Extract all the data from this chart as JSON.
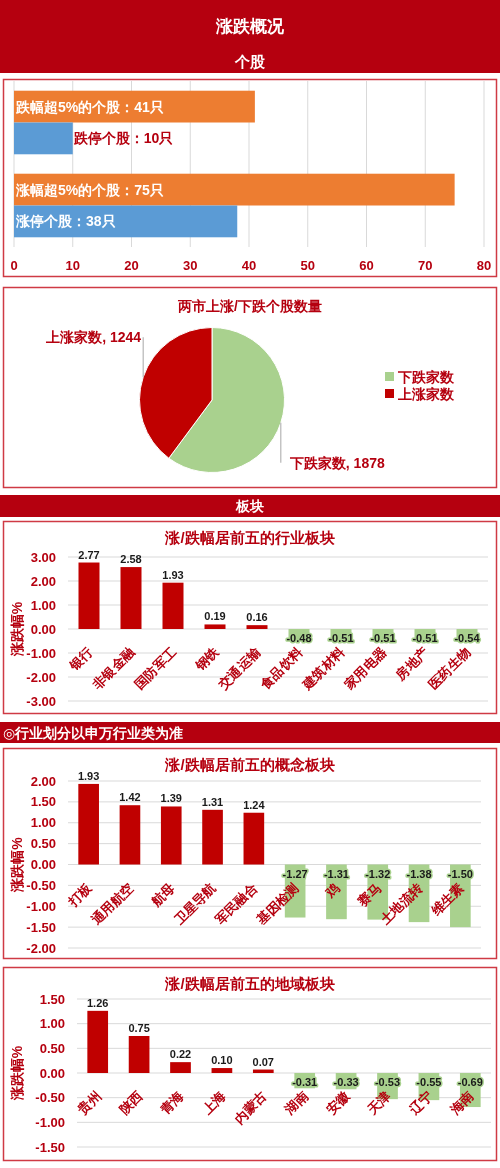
{
  "chart_data": [
    {
      "type": "other",
      "title": "涨跌概况",
      "subtitle": "个股"
    },
    {
      "type": "bar",
      "orientation": "horizontal",
      "categories": [
        null,
        null
      ],
      "series": [
        {
          "color": "#ed7d31",
          "values": [
            41,
            75
          ],
          "value_labels": [
            "跌幅超5%的个股：41只",
            "涨幅超5%的个股：75只"
          ]
        },
        {
          "color": "#5b9bd5",
          "values": [
            10,
            38
          ],
          "value_labels": [
            "跌停个股：10只",
            "涨停个股：38只"
          ]
        }
      ],
      "xlim": [
        0,
        80
      ],
      "xticks": [
        0,
        10,
        20,
        30,
        40,
        50,
        60,
        70,
        80
      ],
      "grid": "x",
      "tick_labels": "x"
    },
    {
      "type": "pie",
      "title": "两市上涨/下跌个股数量",
      "categories": [
        "下跌家数",
        "上涨家数"
      ],
      "values": [
        1878,
        1244
      ],
      "colors": [
        "#a9d18e",
        "#c00000"
      ],
      "value_labels": [
        "下跌家数, 1878",
        "上涨家数, 1244"
      ],
      "legend": "right"
    },
    {
      "type": "other",
      "title": "板块"
    },
    {
      "type": "bar",
      "title": "涨/跌幅居前五的行业板块",
      "ylabel": "涨跌幅%",
      "categories": [
        "银行",
        "非银金融",
        "国防军工",
        "钢铁",
        "交通运输",
        "食品饮料",
        "建筑材料",
        "家用电器",
        "房地产",
        "医药生物"
      ],
      "values": [
        2.77,
        2.58,
        1.93,
        0.19,
        0.16,
        -0.48,
        -0.51,
        -0.51,
        -0.51,
        -0.54
      ],
      "colors": [
        "#c00000",
        "#c00000",
        "#c00000",
        "#c00000",
        "#c00000",
        "#a9d18e",
        "#a9d18e",
        "#a9d18e",
        "#a9d18e",
        "#a9d18e"
      ],
      "value_labels": [
        "2.77",
        "2.58",
        "1.93",
        "0.19",
        "0.16",
        "-0.48",
        "-0.51",
        "-0.51",
        "-0.51",
        "-0.54"
      ],
      "ylim": [
        -3,
        3
      ],
      "yticks": [
        {
          "value": -3,
          "label": "-3.00"
        },
        {
          "value": -2,
          "label": "-2.00"
        },
        {
          "value": -1,
          "label": "-1.00"
        },
        {
          "value": 0,
          "label": "0.00"
        },
        {
          "value": 1,
          "label": "1.00"
        },
        {
          "value": 2,
          "label": "2.00"
        },
        {
          "value": 3,
          "label": "3.00"
        }
      ],
      "grid": "y",
      "annotations": [
        "◎行业划分以申万行业类为准"
      ]
    },
    {
      "type": "bar",
      "title": "涨/跌幅居前五的概念板块",
      "ylabel": "涨跌幅%",
      "categories": [
        "打板",
        "通用航空",
        "航母",
        "卫星导航",
        "军民融合",
        "基因检测",
        "鸡",
        "赛马",
        "土地流转",
        "维生素"
      ],
      "values": [
        1.93,
        1.42,
        1.39,
        1.31,
        1.24,
        -1.27,
        -1.31,
        -1.32,
        -1.38,
        -1.5
      ],
      "colors": [
        "#c00000",
        "#c00000",
        "#c00000",
        "#c00000",
        "#c00000",
        "#a9d18e",
        "#a9d18e",
        "#a9d18e",
        "#a9d18e",
        "#a9d18e"
      ],
      "value_labels": [
        "1.93",
        "1.42",
        "1.39",
        "1.31",
        "1.24",
        "-1.27",
        "-1.31",
        "-1.32",
        "-1.38",
        "-1.50"
      ],
      "ylim": [
        -2,
        2
      ],
      "yticks": [
        {
          "value": -2,
          "label": "-2.00"
        },
        {
          "value": -1.5,
          "label": "-1.50"
        },
        {
          "value": -1,
          "label": "-1.00"
        },
        {
          "value": -0.5,
          "label": "-0.50"
        },
        {
          "value": 0,
          "label": "0.00"
        },
        {
          "value": 0.5,
          "label": "0.50"
        },
        {
          "value": 1,
          "label": "1.00"
        },
        {
          "value": 1.5,
          "label": "1.50"
        },
        {
          "value": 2,
          "label": "2.00"
        }
      ],
      "grid": "y"
    },
    {
      "type": "bar",
      "title": "涨/跌幅居前五的地域板块",
      "ylabel": "涨跌幅%",
      "categories": [
        "贵州",
        "陕西",
        "青海",
        "上海",
        "内蒙古",
        "湖南",
        "安徽",
        "天津",
        "辽宁",
        "海南"
      ],
      "values": [
        1.26,
        0.75,
        0.22,
        0.1,
        0.07,
        -0.31,
        -0.33,
        -0.53,
        -0.55,
        -0.69
      ],
      "colors": [
        "#c00000",
        "#c00000",
        "#c00000",
        "#c00000",
        "#c00000",
        "#a9d18e",
        "#a9d18e",
        "#a9d18e",
        "#a9d18e",
        "#a9d18e"
      ],
      "value_labels": [
        "1.26",
        "0.75",
        "0.22",
        "0.10",
        "0.07",
        "-0.31",
        "-0.33",
        "-0.53",
        "-0.55",
        "-0.69"
      ],
      "ylim": [
        -1.5,
        1.5
      ],
      "yticks": [
        {
          "value": -1.5,
          "label": "-1.50"
        },
        {
          "value": -1,
          "label": "-1.00"
        },
        {
          "value": -0.5,
          "label": "-0.50"
        },
        {
          "value": 0,
          "label": "0.00"
        },
        {
          "value": 0.5,
          "label": "0.50"
        },
        {
          "value": 1,
          "label": "1.00"
        },
        {
          "value": 1.5,
          "label": "1.50"
        }
      ],
      "grid": "y"
    }
  ]
}
